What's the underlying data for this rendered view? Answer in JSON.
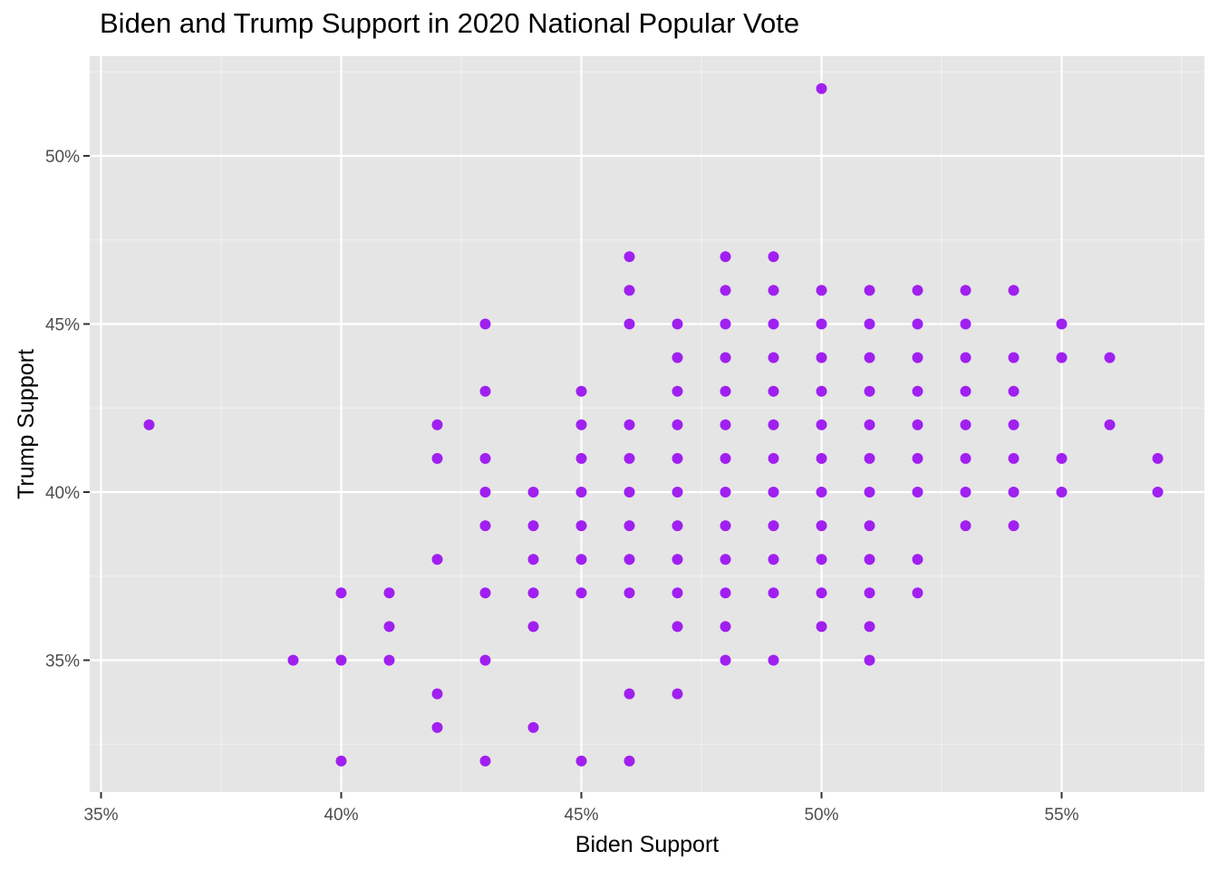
{
  "chart_data": {
    "type": "scatter",
    "title": "Biden and Trump Support in 2020 National Popular Vote",
    "xlabel": "Biden Support",
    "ylabel": "Trump Support",
    "xlim": [
      35,
      57.5
    ],
    "ylim": [
      31.2,
      52.5
    ],
    "x_ticks": [
      35,
      40,
      45,
      50,
      55
    ],
    "x_tick_labels": [
      "35%",
      "40%",
      "45%",
      "50%",
      "55%"
    ],
    "y_ticks": [
      35,
      40,
      45,
      50
    ],
    "y_tick_labels": [
      "35%",
      "40%",
      "45%",
      "50%"
    ],
    "grid": true,
    "point_color": "#a020f0",
    "panel_background": "#e5e5e5",
    "points": [
      [
        36,
        42
      ],
      [
        39,
        35
      ],
      [
        40,
        37
      ],
      [
        40,
        35
      ],
      [
        40,
        32
      ],
      [
        41,
        37
      ],
      [
        41,
        36
      ],
      [
        41,
        35
      ],
      [
        42,
        42
      ],
      [
        42,
        41
      ],
      [
        42,
        38
      ],
      [
        42,
        34
      ],
      [
        42,
        33
      ],
      [
        43,
        45
      ],
      [
        43,
        43
      ],
      [
        43,
        41
      ],
      [
        43,
        40
      ],
      [
        43,
        39
      ],
      [
        43,
        37
      ],
      [
        43,
        35
      ],
      [
        43,
        32
      ],
      [
        44,
        40
      ],
      [
        44,
        39
      ],
      [
        44,
        38
      ],
      [
        44,
        37
      ],
      [
        44,
        36
      ],
      [
        44,
        33
      ],
      [
        45,
        43
      ],
      [
        45,
        42
      ],
      [
        45,
        41
      ],
      [
        45,
        40
      ],
      [
        45,
        39
      ],
      [
        45,
        38
      ],
      [
        45,
        37
      ],
      [
        45,
        32
      ],
      [
        46,
        47
      ],
      [
        46,
        46
      ],
      [
        46,
        45
      ],
      [
        46,
        42
      ],
      [
        46,
        41
      ],
      [
        46,
        40
      ],
      [
        46,
        39
      ],
      [
        46,
        38
      ],
      [
        46,
        37
      ],
      [
        46,
        34
      ],
      [
        46,
        32
      ],
      [
        47,
        45
      ],
      [
        47,
        44
      ],
      [
        47,
        43
      ],
      [
        47,
        42
      ],
      [
        47,
        41
      ],
      [
        47,
        40
      ],
      [
        47,
        39
      ],
      [
        47,
        38
      ],
      [
        47,
        37
      ],
      [
        47,
        36
      ],
      [
        47,
        34
      ],
      [
        48,
        47
      ],
      [
        48,
        46
      ],
      [
        48,
        45
      ],
      [
        48,
        44
      ],
      [
        48,
        43
      ],
      [
        48,
        42
      ],
      [
        48,
        41
      ],
      [
        48,
        40
      ],
      [
        48,
        39
      ],
      [
        48,
        38
      ],
      [
        48,
        37
      ],
      [
        48,
        36
      ],
      [
        48,
        35
      ],
      [
        49,
        47
      ],
      [
        49,
        46
      ],
      [
        49,
        45
      ],
      [
        49,
        44
      ],
      [
        49,
        43
      ],
      [
        49,
        42
      ],
      [
        49,
        41
      ],
      [
        49,
        40
      ],
      [
        49,
        39
      ],
      [
        49,
        38
      ],
      [
        49,
        37
      ],
      [
        49,
        35
      ],
      [
        50,
        52
      ],
      [
        50,
        46
      ],
      [
        50,
        45
      ],
      [
        50,
        44
      ],
      [
        50,
        43
      ],
      [
        50,
        42
      ],
      [
        50,
        41
      ],
      [
        50,
        40
      ],
      [
        50,
        39
      ],
      [
        50,
        38
      ],
      [
        50,
        37
      ],
      [
        50,
        36
      ],
      [
        51,
        46
      ],
      [
        51,
        45
      ],
      [
        51,
        44
      ],
      [
        51,
        43
      ],
      [
        51,
        42
      ],
      [
        51,
        41
      ],
      [
        51,
        40
      ],
      [
        51,
        39
      ],
      [
        51,
        38
      ],
      [
        51,
        37
      ],
      [
        51,
        36
      ],
      [
        51,
        35
      ],
      [
        52,
        46
      ],
      [
        52,
        45
      ],
      [
        52,
        44
      ],
      [
        52,
        43
      ],
      [
        52,
        42
      ],
      [
        52,
        41
      ],
      [
        52,
        40
      ],
      [
        52,
        38
      ],
      [
        52,
        37
      ],
      [
        53,
        46
      ],
      [
        53,
        45
      ],
      [
        53,
        44
      ],
      [
        53,
        43
      ],
      [
        53,
        42
      ],
      [
        53,
        41
      ],
      [
        53,
        40
      ],
      [
        53,
        39
      ],
      [
        54,
        46
      ],
      [
        54,
        44
      ],
      [
        54,
        43
      ],
      [
        54,
        42
      ],
      [
        54,
        41
      ],
      [
        54,
        40
      ],
      [
        54,
        39
      ],
      [
        55,
        45
      ],
      [
        55,
        44
      ],
      [
        55,
        41
      ],
      [
        55,
        40
      ],
      [
        56,
        44
      ],
      [
        56,
        42
      ],
      [
        57,
        41
      ],
      [
        57,
        40
      ]
    ]
  }
}
